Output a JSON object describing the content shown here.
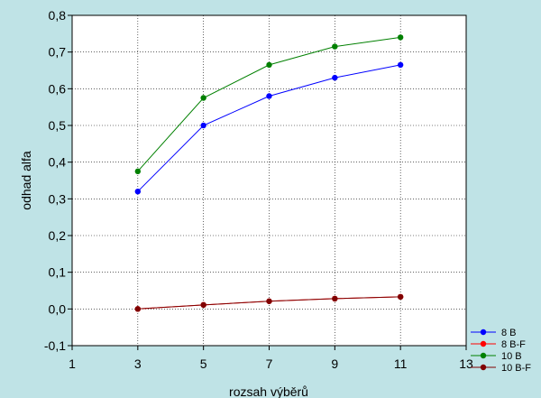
{
  "chart_data": {
    "type": "line",
    "xlabel": "rozsah výběrů",
    "ylabel": "odhad alfa",
    "xlim": [
      1,
      13
    ],
    "ylim": [
      -0.1,
      0.8
    ],
    "xticks": [
      1,
      3,
      5,
      7,
      9,
      11,
      13
    ],
    "xtick_labels": [
      "1",
      "3",
      "5",
      "7",
      "9",
      "11",
      "13"
    ],
    "yticks": [
      -0.1,
      0.0,
      0.1,
      0.2,
      0.3,
      0.4,
      0.5,
      0.6,
      0.7,
      0.8
    ],
    "ytick_labels": [
      "-0,1",
      "0,0",
      "0,1",
      "0,2",
      "0,3",
      "0,4",
      "0,5",
      "0,6",
      "0,7",
      "0,8"
    ],
    "grid": true,
    "legend_position": "bottom-right",
    "x": [
      3,
      5,
      7,
      9,
      11
    ],
    "series": [
      {
        "name": "8 B",
        "color": "#0000ff",
        "values": [
          0.32,
          0.5,
          0.58,
          0.63,
          0.665
        ]
      },
      {
        "name": "8 B-F",
        "color": "#ff0000",
        "values": [
          0.0,
          0.011,
          0.021,
          0.028,
          0.033
        ]
      },
      {
        "name": "10 B",
        "color": "#008000",
        "values": [
          0.375,
          0.575,
          0.665,
          0.715,
          0.74
        ]
      },
      {
        "name": "10 B-F",
        "color": "#800000",
        "values": [
          0.0,
          0.011,
          0.021,
          0.028,
          0.033
        ]
      }
    ]
  }
}
